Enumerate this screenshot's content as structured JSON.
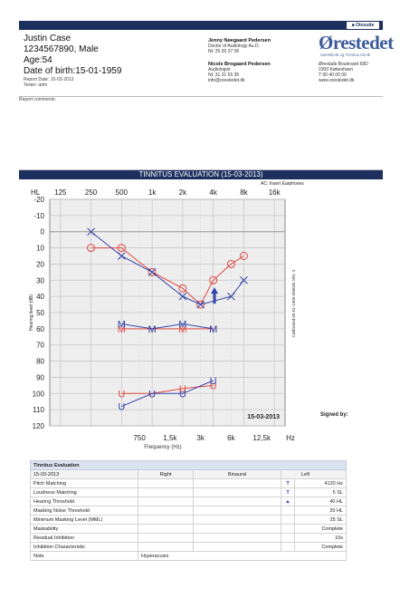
{
  "header": {
    "badge": "■ Otosuite",
    "patient_name": "Justin Case",
    "patient_id_gender": "1234567890, Male",
    "age": "Age:54",
    "dob": "Date of birth:15-01-1959",
    "report_date": "Report Date: 15-03-2013",
    "tester": "Tester: adm",
    "doctor1": {
      "name": "Jenny Nøegaard Pedersen",
      "title": "Doctor of Audiology Au.D.",
      "phone": "Nt: 25 00 37 06"
    },
    "doctor2": {
      "name": "Nicole Brogaard Pedersen",
      "title": "Audiologist",
      "phone": "Nt: 31 31 55 35",
      "email": "info@orestedet.dk"
    },
    "logo": "Ørestedet",
    "logo_sub": "Høreklinik og Tinnitus Klinik",
    "address": [
      "Ørestads Boulevard 69D",
      "2300 København",
      "T 90 40 00 00",
      "www.orestedet.dk"
    ]
  },
  "report_comments_label": "Report comments:",
  "section_title": "TINNITUS EVALUATION  (15-03-2013)",
  "ac_note": "AC: Insert Earphones",
  "signed_by": "Signed by:",
  "chart_data": {
    "type": "line",
    "title": "",
    "xlabel": "Frequency (Hz)",
    "ylabel": "Hearing level (dB)",
    "x_top_label": "HL",
    "x_top_ticks": [
      "125",
      "250",
      "500",
      "1k",
      "2k",
      "4k",
      "8k",
      "16k"
    ],
    "x_bottom_ticks": [
      "750",
      "1,5k",
      "3k",
      "6k",
      "12,5k",
      "Hz"
    ],
    "y_ticks": [
      -20,
      -10,
      0,
      10,
      20,
      30,
      40,
      50,
      60,
      70,
      80,
      90,
      100,
      110,
      120
    ],
    "ylim": [
      -20,
      120
    ],
    "y_inverted": true,
    "grid": true,
    "date_label": "15-03-2013",
    "calibration_note": "Calibrated 05-01-1900 000035 S/N: 3",
    "colors": {
      "right": "#e0473f",
      "left": "#3546a8"
    },
    "series": [
      {
        "side": "right",
        "kind": "hearing",
        "x": [
          "250",
          "500",
          "1k",
          "2k",
          "3k",
          "4k",
          "6k",
          "8k"
        ],
        "values": [
          10,
          10,
          25,
          35,
          45,
          30,
          20,
          15
        ]
      },
      {
        "side": "left",
        "kind": "hearing",
        "x": [
          "250",
          "500",
          "1k",
          "2k",
          "3k",
          "6k",
          "8k"
        ],
        "values": [
          0,
          15,
          25,
          40,
          45,
          40,
          30
        ]
      },
      {
        "side": "right",
        "kind": "MCL",
        "marker": "M",
        "x": [
          "500",
          "1k",
          "2k",
          "4k"
        ],
        "values": [
          60,
          60,
          60,
          60
        ]
      },
      {
        "side": "left",
        "kind": "MCL",
        "marker": "M",
        "x": [
          "500",
          "1k",
          "2k",
          "4k"
        ],
        "values": [
          57,
          60,
          57,
          60
        ]
      },
      {
        "side": "right",
        "kind": "UCL",
        "marker": "U",
        "x": [
          "500",
          "1k",
          "2k",
          "4k"
        ],
        "values": [
          100,
          100,
          97,
          95
        ]
      },
      {
        "side": "left",
        "kind": "UCL",
        "marker": "U",
        "x": [
          "500",
          "1k",
          "2k",
          "4k"
        ],
        "values": [
          108,
          100,
          100,
          92
        ]
      },
      {
        "side": "left",
        "kind": "tinnitus-pitch",
        "marker": "arrow",
        "x": [
          "4120"
        ],
        "values": [
          40
        ]
      }
    ]
  },
  "table": {
    "title": "Tinnitus Evaluation",
    "head": [
      "15-03-2013",
      "Right",
      "Binaural",
      "Left"
    ],
    "rows": [
      {
        "label": "Pitch Matching",
        "icon": "T",
        "left": "4120 Hz"
      },
      {
        "label": "Loudness Matching",
        "icon": "T",
        "left": "5 SL"
      },
      {
        "label": "Hearing Threshold",
        "icon": "▲",
        "left": "40 HL"
      },
      {
        "label": "Masking Noise Threshold",
        "icon": "",
        "left": "20 HL"
      },
      {
        "label": "Minimum Masking Level (MML)",
        "icon": "",
        "left": "25 SL"
      },
      {
        "label": "Maskability",
        "icon": "",
        "left": "Complete"
      },
      {
        "label": "Residual Inhibition",
        "icon": "",
        "left": "10s"
      },
      {
        "label": "Inhibition Characteristic",
        "icon": "",
        "left": "Complete"
      },
      {
        "label": "Note",
        "icon": "",
        "left": "",
        "right": "Hyperacusis"
      }
    ]
  }
}
